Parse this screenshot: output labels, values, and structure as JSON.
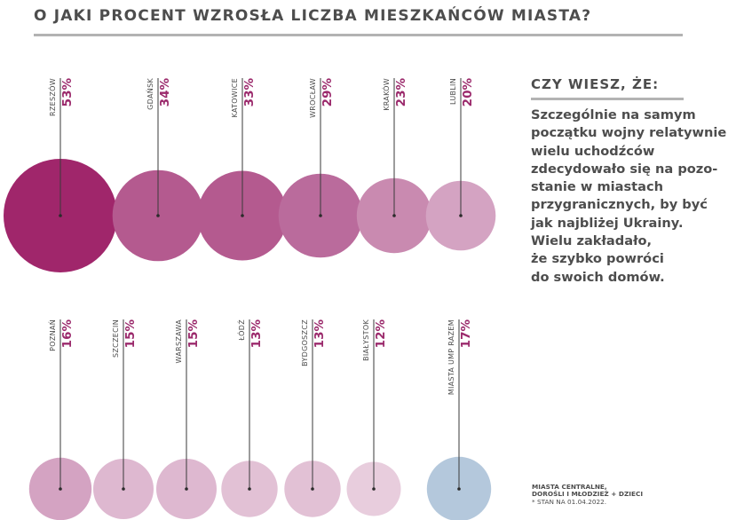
{
  "header": {
    "title": "O JAKI PROCENT WZROSŁA LICZBA MIESZKAŃCÓW MIASTA?"
  },
  "sidebar": {
    "heading": "CZY WIESZ, ŻE:",
    "lines": [
      "Szczególnie na samym",
      "początku wojny relatywnie",
      "wielu uchodźców",
      "zdecydowało się na pozo-",
      "stanie w miastach",
      "przygranicznych, by być",
      "jak najbliżej Ukrainy.",
      "Wielu zakładało,",
      "że szybko powróci",
      "do swoich domów."
    ]
  },
  "footnote": {
    "line1": "MIASTA CENTRALNE,",
    "line2": "DOROŚLI I MŁODZIEŻ + DZIECI",
    "line3": "* STAN NA 01.04.2022."
  },
  "colors": {
    "text": "#4d4d4d",
    "value_text": "#9b2a6c",
    "bubble_shades": [
      "#a0266b",
      "#b45a8f",
      "#ba6b9c",
      "#c98ab0",
      "#d4a3c2",
      "#deb8d0",
      "#e2c1d5",
      "#e8cddd"
    ],
    "total_bubble": "#b4c8dc"
  },
  "chart_data": {
    "type": "bubble",
    "title": "O JAKI PROCENT WZROSŁA LICZBA MIESZKAŃCÓW MIASTA?",
    "unit": "%",
    "rows": [
      {
        "points": [
          {
            "label": "RZESZÓW",
            "value": 53,
            "value_label": "53%",
            "color": "#a0266b"
          },
          {
            "label": "GDAŃSK",
            "value": 34,
            "value_label": "34%",
            "color": "#b45a8f"
          },
          {
            "label": "KATOWICE",
            "value": 33,
            "value_label": "33%",
            "color": "#b45a8f"
          },
          {
            "label": "WROCŁAW",
            "value": 29,
            "value_label": "29%",
            "color": "#ba6b9c"
          },
          {
            "label": "KRAKÓW",
            "value": 23,
            "value_label": "23%",
            "color": "#c98ab0"
          },
          {
            "label": "LUBLIN",
            "value": 20,
            "value_label": "20%",
            "color": "#d4a3c2"
          }
        ]
      },
      {
        "points": [
          {
            "label": "POZNAŃ",
            "value": 16,
            "value_label": "16%",
            "color": "#d4a3c2"
          },
          {
            "label": "SZCZECIN",
            "value": 15,
            "value_label": "15%",
            "color": "#deb8d0"
          },
          {
            "label": "WARSZAWA",
            "value": 15,
            "value_label": "15%",
            "color": "#deb8d0"
          },
          {
            "label": "ŁÓDŹ",
            "value": 13,
            "value_label": "13%",
            "color": "#e2c1d5"
          },
          {
            "label": "BYDGOSZCZ",
            "value": 13,
            "value_label": "13%",
            "color": "#e2c1d5"
          },
          {
            "label": "BIAŁYSTOK",
            "value": 12,
            "value_label": "12%",
            "color": "#e8cddd"
          },
          {
            "label": "MIASTA UMP RAZEM",
            "value": 17,
            "value_label": "17%",
            "color": "#b4c8dc"
          }
        ]
      }
    ]
  }
}
